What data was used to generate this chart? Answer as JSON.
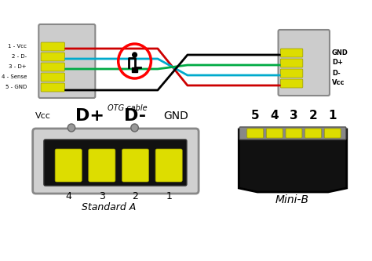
{
  "bg_color": "#ffffff",
  "pin_labels_left": [
    "5 - GND",
    "4 - Sense",
    "3 - D+",
    "2 - D-",
    "1 - Vcc"
  ],
  "pin_labels_right": [
    "Vcc",
    "D-",
    "D+",
    "GND"
  ],
  "wire_colors": [
    "#cc0000",
    "#00aacc",
    "#00aa44",
    "#000000"
  ],
  "connector_fill": "#cccccc",
  "pin_fill": "#dddd00",
  "otg_label": "OTG cable",
  "bottom_labels": [
    "Vcc",
    "D+",
    "D-",
    "GND"
  ],
  "standard_a_pins": [
    "4",
    "3",
    "2",
    "1"
  ],
  "standard_a_label": "Standard A",
  "mini_b_pins": [
    "5",
    "4",
    "3",
    "2",
    "1"
  ],
  "mini_b_label": "Mini-B",
  "title_color": "#000000"
}
